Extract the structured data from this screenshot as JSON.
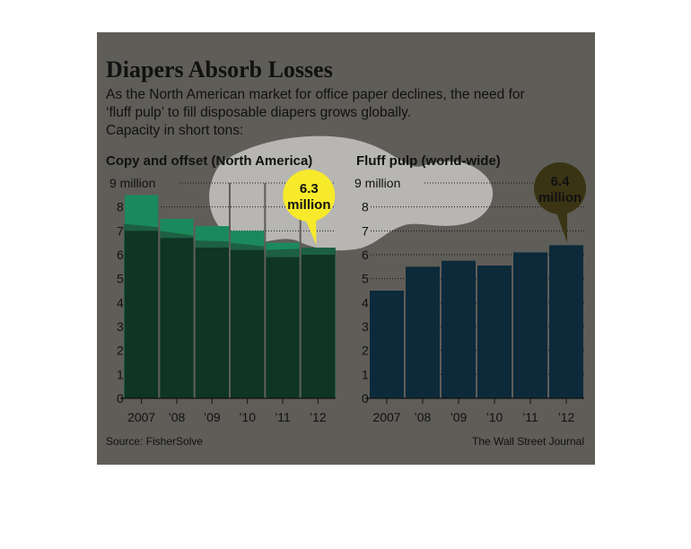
{
  "graphic": {
    "title": "Diapers Absorb Losses",
    "subtitle_lines": [
      "As the North American market for office paper declines, the need for",
      "‘fluff pulp’ to fill disposable diapers grows globally.",
      "Capacity in short tons:"
    ],
    "source": "Source: FisherSolve",
    "credit": "The Wall Street Journal",
    "colors": {
      "background": "#5f5d58",
      "left_bars": "#0e3526",
      "left_bars_highlight": "#1a8a5c",
      "right_bars": "#0c2a3a",
      "left_callout_fill": "#f7ea2b",
      "right_callout_fill": "#3a3414",
      "highlight_blob": "#ffffff"
    }
  },
  "chart_data": [
    {
      "type": "bar",
      "title": "Copy and offset (North America)",
      "categories": [
        "2007",
        "’08",
        "’09",
        "’10",
        "’11",
        "’12"
      ],
      "values": [
        8.5,
        7.5,
        7.2,
        7.0,
        6.5,
        6.3
      ],
      "overlay_line": [
        7.3,
        7.0,
        6.6,
        6.5,
        6.2,
        6.3
      ],
      "y_tick_labels": [
        "0",
        "1",
        "2",
        "3",
        "4",
        "5",
        "6",
        "7",
        "8",
        "9 million"
      ],
      "ylim": [
        0,
        9
      ],
      "callout": {
        "value": "6.3",
        "unit": "million",
        "category_index": 5
      }
    },
    {
      "type": "bar",
      "title": "Fluff pulp (world-wide)",
      "categories": [
        "2007",
        "’08",
        "’09",
        "’10",
        "’11",
        "’12"
      ],
      "values": [
        4.5,
        5.5,
        5.75,
        5.55,
        6.1,
        6.4
      ],
      "y_tick_labels": [
        "0",
        "1",
        "2",
        "3",
        "4",
        "5",
        "6",
        "7",
        "8",
        "9 million"
      ],
      "ylim": [
        0,
        9
      ],
      "callout": {
        "value": "6.4",
        "unit": "million",
        "category_index": 5
      }
    }
  ]
}
